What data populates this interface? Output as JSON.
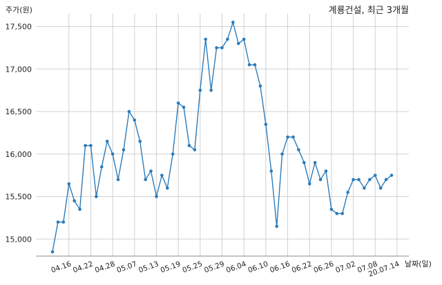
{
  "chart_data": {
    "type": "line",
    "title": "계룡건설, 최근 3개월",
    "ylabel": "주가(원)",
    "xlabel": "날짜(일)",
    "ylim": [
      14800,
      17650
    ],
    "yticks": [
      15000,
      15500,
      16000,
      16500,
      17000,
      17500
    ],
    "ytick_labels": [
      "15,000",
      "15,500",
      "16,000",
      "16,500",
      "17,000",
      "17,500"
    ],
    "grid": true,
    "line_color": "#2b7bba",
    "xtick_labels": [
      "04.16",
      "04.22",
      "04.28",
      "05.07",
      "05.13",
      "05.19",
      "05.25",
      "05.29",
      "06.04",
      "06.10",
      "06.16",
      "06.22",
      "06.26",
      "07.02",
      "07.08",
      "20.07.14"
    ],
    "xtick_index": [
      3,
      7,
      11,
      15,
      19,
      23,
      27,
      31,
      35,
      39,
      43,
      47,
      51,
      55,
      59,
      63
    ],
    "series": [
      {
        "values": [
          14850,
          15200,
          15200,
          15650,
          15450,
          15350,
          16100,
          16100,
          15500,
          15850,
          16150,
          16000,
          15700,
          16050,
          16500,
          16400,
          16150,
          15700,
          15800,
          15500,
          15750,
          15600,
          16000,
          16600,
          16550,
          16100,
          16050,
          16750,
          17350,
          16750,
          17250,
          17250,
          17350,
          17550,
          17300,
          17350,
          17050,
          17050,
          16800,
          16350,
          15800,
          15150,
          16000,
          16200,
          16200,
          16050,
          15900,
          15650,
          15900,
          15700,
          15800,
          15350,
          15300,
          15300,
          15550,
          15700,
          15700,
          15600,
          15700,
          15750,
          15600,
          15700,
          15750
        ]
      }
    ]
  }
}
